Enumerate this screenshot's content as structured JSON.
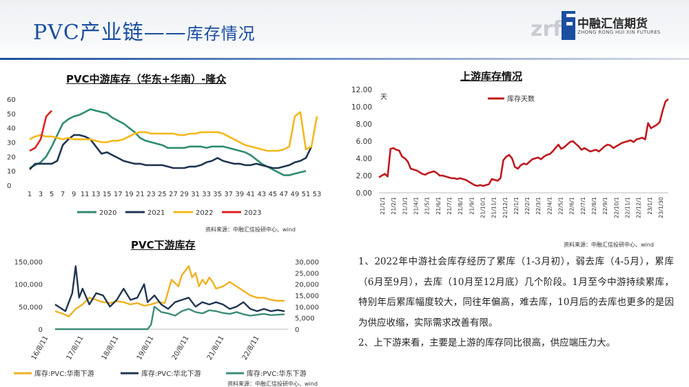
{
  "header": {
    "title": "PVC产业链——",
    "subtitle": "库存情况",
    "logo_name": "中融汇信期货",
    "logo_en": "ZHONG RONG HUI XIN FUTURES",
    "logo_mark": "zrf"
  },
  "charts": {
    "mid": {
      "title": "PVC中游库存（华东+华南）-隆众",
      "source": "资料来源：中融汇信投研中心、wind"
    },
    "up": {
      "title": "上游库存情况",
      "unit": "天",
      "source": "资料来源：中融汇信投研中心、wind"
    },
    "down": {
      "title": "PVC下游库存",
      "source": "资料来源：中融汇信投研中心、wind"
    }
  },
  "summary": {
    "p1": "1、2022年中游社会库存经历了累库（1-3月初），弱去库（4-5月），累库（6月至9月），去库（10月至12月底）几个阶段。1月至今中游持续累库，特别年后累库幅度较大，同往年偏高，难去库，10月后的去库也更多的是因为供应收缩，实际需求改善有限。",
    "p2": "2、上下游来看，主要是上游的库存同比很高，供应端压力大。"
  },
  "chart_data": [
    {
      "type": "line",
      "title": "PVC中游库存（华东+华南）-隆众",
      "x_ticks": [
        1,
        3,
        5,
        7,
        9,
        11,
        13,
        15,
        17,
        19,
        21,
        23,
        25,
        27,
        29,
        31,
        33,
        35,
        37,
        39,
        41,
        43,
        45,
        47,
        49,
        51,
        53
      ],
      "y_ticks": [
        0,
        10,
        20,
        30,
        40,
        50,
        60
      ],
      "ylim": [
        0,
        60
      ],
      "xlim": [
        1,
        53
      ],
      "grid": false,
      "legend_position": "bottom",
      "series": [
        {
          "name": "2020",
          "color": "#2e8b6e",
          "x": [
            1,
            2,
            3,
            4,
            5,
            6,
            7,
            8,
            9,
            10,
            11,
            12,
            13,
            14,
            15,
            16,
            17,
            18,
            19,
            20,
            21,
            22,
            23,
            24,
            25,
            26,
            27,
            28,
            29,
            30,
            31,
            32,
            33,
            34,
            35,
            36,
            37,
            38,
            39,
            40,
            41,
            42,
            43,
            44,
            45,
            46,
            47,
            48,
            49,
            50,
            51
          ],
          "y": [
            12,
            14,
            16,
            20,
            27,
            35,
            43,
            46,
            48,
            49,
            51,
            53,
            52,
            51,
            50,
            47,
            45,
            43,
            40,
            37,
            33,
            31,
            30,
            29,
            28,
            26,
            26,
            26,
            26,
            27,
            27,
            27,
            26,
            27,
            27,
            27,
            26,
            25,
            24,
            23,
            21,
            18,
            15,
            13,
            11,
            9,
            7,
            7,
            8,
            9,
            10
          ]
        },
        {
          "name": "2021",
          "color": "#1f3550",
          "x": [
            1,
            2,
            3,
            4,
            5,
            6,
            7,
            8,
            9,
            10,
            11,
            12,
            13,
            14,
            15,
            16,
            17,
            18,
            19,
            20,
            21,
            22,
            23,
            24,
            25,
            26,
            27,
            28,
            29,
            30,
            31,
            32,
            33,
            34,
            35,
            36,
            37,
            38,
            39,
            40,
            41,
            42,
            43,
            44,
            45,
            46,
            47,
            48,
            49,
            50,
            51,
            52
          ],
          "y": [
            11,
            15,
            15,
            15,
            15,
            17,
            28,
            32,
            35,
            35,
            34,
            32,
            27,
            22,
            23,
            21,
            19,
            17,
            16,
            15,
            15,
            14,
            14,
            14,
            14,
            13,
            12,
            12,
            12,
            13,
            13,
            14,
            16,
            17,
            19,
            17,
            16,
            15,
            15,
            14,
            14,
            15,
            14,
            13,
            12,
            12,
            13,
            14,
            16,
            17,
            19,
            27
          ]
        },
        {
          "name": "2022",
          "color": "#f5b81a",
          "x": [
            1,
            2,
            3,
            4,
            5,
            6,
            7,
            8,
            9,
            10,
            11,
            12,
            13,
            14,
            15,
            16,
            17,
            18,
            19,
            20,
            21,
            22,
            23,
            24,
            25,
            26,
            27,
            28,
            29,
            30,
            31,
            32,
            33,
            34,
            35,
            36,
            37,
            38,
            39,
            40,
            41,
            42,
            43,
            44,
            45,
            46,
            47,
            48,
            49,
            50,
            51,
            52,
            53
          ],
          "y": [
            32,
            34,
            35,
            34,
            34,
            33,
            32,
            33,
            32,
            32,
            32,
            32,
            31,
            30,
            30,
            31,
            31,
            32,
            34,
            36,
            37,
            37,
            36,
            36,
            36,
            36,
            36,
            35,
            35,
            36,
            36,
            37,
            37,
            37,
            37,
            36,
            34,
            32,
            30,
            28,
            27,
            26,
            25,
            24,
            24,
            24,
            25,
            27,
            48,
            51,
            25,
            27,
            48
          ]
        },
        {
          "name": "2023",
          "color": "#e02020",
          "x": [
            1,
            2,
            3,
            4,
            5
          ],
          "y": [
            24,
            26,
            32,
            48,
            52
          ]
        }
      ]
    },
    {
      "type": "line",
      "title": "上游库存情况",
      "ylabel": "天",
      "y_ticks": [
        0.0,
        2.0,
        4.0,
        6.0,
        8.0,
        10.0,
        12.0
      ],
      "ylim": [
        0,
        12
      ],
      "grid": false,
      "legend_position": "top-left",
      "categories": [
        "21/1/1",
        "21/2/1",
        "21/3/1",
        "21/4/1",
        "21/5/1",
        "21/6/1",
        "21/7/1",
        "21/8/1",
        "21/9/1",
        "21/10/1",
        "21/11/1",
        "21/12/1",
        "22/1/1",
        "22/2/1",
        "22/3/1",
        "22/4/1",
        "22/5/1",
        "22/6/1",
        "22/7/1",
        "22/8/1",
        "22/9/1",
        "22/10/1",
        "22/11/1",
        "22/12/1",
        "23/1/1",
        "23/1/30"
      ],
      "series": [
        {
          "name": "库存天数",
          "color": "#c0181e",
          "x": [
            0,
            1,
            2,
            3,
            4,
            5,
            6,
            7,
            8,
            9,
            10,
            11,
            12,
            13,
            14,
            15,
            16,
            17,
            18,
            19,
            20,
            21,
            22,
            23,
            24,
            25,
            26,
            27,
            28,
            29,
            30,
            31,
            32,
            33,
            34,
            35,
            36,
            37,
            38,
            39,
            40,
            41,
            42,
            43,
            44,
            45,
            46,
            47,
            48,
            49,
            50,
            51,
            52,
            53,
            54,
            55,
            56,
            57,
            58,
            59,
            60,
            61,
            62,
            63,
            64,
            65,
            66,
            67,
            68,
            69,
            70,
            71,
            72,
            73,
            74,
            75,
            76,
            77,
            78,
            79,
            80,
            81,
            82,
            83,
            84,
            85,
            86,
            87,
            88,
            89,
            90,
            91,
            92,
            93,
            94,
            95,
            96,
            97,
            98,
            99,
            100
          ],
          "y": [
            1.8,
            2.0,
            2.2,
            1.9,
            5.1,
            5.2,
            5.0,
            4.9,
            4.2,
            4.0,
            3.6,
            2.8,
            2.7,
            2.6,
            2.4,
            2.2,
            2.1,
            2.3,
            2.4,
            2.5,
            2.3,
            2.0,
            2.0,
            1.9,
            1.8,
            1.7,
            1.7,
            1.6,
            1.7,
            1.6,
            1.5,
            1.3,
            1.1,
            0.9,
            0.8,
            0.9,
            0.8,
            0.9,
            1.0,
            1.6,
            1.5,
            1.4,
            1.7,
            3.8,
            4.2,
            4.4,
            4.0,
            3.0,
            2.8,
            3.2,
            3.4,
            3.3,
            3.6,
            3.9,
            4.0,
            4.1,
            3.9,
            4.2,
            4.4,
            4.5,
            4.8,
            5.2,
            5.6,
            5.1,
            5.3,
            5.6,
            5.9,
            6.0,
            5.7,
            5.4,
            5.0,
            5.2,
            5.0,
            4.8,
            4.9,
            5.0,
            4.8,
            5.1,
            5.4,
            5.6,
            5.5,
            5.2,
            5.4,
            5.6,
            5.8,
            5.9,
            6.0,
            6.1,
            5.9,
            6.2,
            6.3,
            6.4,
            6.2,
            8.1,
            7.5,
            7.7,
            7.9,
            8.2,
            9.5,
            10.6,
            10.9
          ]
        }
      ]
    },
    {
      "type": "line",
      "title": "PVC下游库存",
      "y_ticks_left": [
        "0",
        "50,000",
        "100,000",
        "150,000"
      ],
      "y_ticks_right": [
        "0",
        "5,000",
        "10,000",
        "15,000",
        "20,000",
        "25,000",
        "30,000"
      ],
      "ylim_left": [
        0,
        150000
      ],
      "ylim_right": [
        0,
        30000
      ],
      "x_ticks": [
        "16/8/11",
        "17/8/11",
        "18/8/11",
        "19/8/11",
        "20/8/11",
        "21/8/11",
        "22/8/11"
      ],
      "xlim": [
        2016.3,
        2023.1
      ],
      "grid": false,
      "legend_position": "bottom",
      "series": [
        {
          "name": "库存:PVC:华南下游",
          "color": "#f0b020",
          "axis": "left",
          "x": [
            2016.3,
            2016.5,
            2016.7,
            2016.9,
            2017.1,
            2017.3,
            2017.5,
            2017.7,
            2017.9,
            2018.1,
            2018.3,
            2018.5,
            2018.7,
            2018.9,
            2019.1,
            2019.3,
            2019.5,
            2019.7,
            2019.9,
            2020.0,
            2020.1,
            2020.2,
            2020.3,
            2020.4,
            2020.5,
            2020.6,
            2020.7,
            2020.8,
            2020.9,
            2021.0,
            2021.2,
            2021.4,
            2021.6,
            2021.8,
            2022.0,
            2022.2,
            2022.4,
            2022.6,
            2022.8,
            2023.0
          ],
          "y": [
            40000,
            35000,
            28000,
            45000,
            55000,
            70000,
            65000,
            60000,
            58000,
            62000,
            60000,
            55000,
            58000,
            52000,
            55000,
            60000,
            58000,
            110000,
            95000,
            120000,
            130000,
            140000,
            115000,
            125000,
            95000,
            110000,
            100000,
            115000,
            105000,
            90000,
            95000,
            105000,
            95000,
            85000,
            75000,
            70000,
            70000,
            65000,
            63000,
            63000
          ]
        },
        {
          "name": "库存:PVC:华北下游",
          "color": "#1f3550",
          "axis": "right",
          "x": [
            2016.3,
            2016.5,
            2016.6,
            2016.8,
            2016.9,
            2017.0,
            2017.1,
            2017.3,
            2017.5,
            2017.7,
            2017.9,
            2018.1,
            2018.3,
            2018.5,
            2018.7,
            2018.9,
            2019.0,
            2019.2,
            2019.4,
            2019.6,
            2019.8,
            2020.0,
            2020.2,
            2020.4,
            2020.6,
            2020.8,
            2021.0,
            2021.2,
            2021.4,
            2021.6,
            2021.8,
            2022.0,
            2022.2,
            2022.4,
            2022.6,
            2022.8,
            2023.0
          ],
          "y": [
            11000,
            9000,
            8000,
            16000,
            28000,
            14000,
            18000,
            11000,
            16000,
            15000,
            10000,
            13000,
            18000,
            13000,
            14000,
            20000,
            12000,
            15000,
            11000,
            9000,
            12000,
            13000,
            14000,
            10000,
            12000,
            11000,
            12000,
            11000,
            9000,
            10000,
            12000,
            9000,
            8000,
            9000,
            8000,
            8500,
            8000
          ]
        },
        {
          "name": "库存:PVC:华东下游",
          "color": "#3c8c78",
          "axis": "left",
          "x": [
            2016.3,
            2016.8,
            2017.3,
            2017.8,
            2018.3,
            2018.8,
            2019.0,
            2019.1,
            2019.2,
            2019.4,
            2019.6,
            2019.8,
            2020.0,
            2020.2,
            2020.4,
            2020.6,
            2020.8,
            2021.0,
            2021.2,
            2021.4,
            2021.6,
            2021.8,
            2022.0,
            2022.2,
            2022.4,
            2022.6,
            2022.8,
            2023.0
          ],
          "y": [
            0,
            0,
            0,
            0,
            0,
            0,
            0,
            10000,
            50000,
            38000,
            35000,
            30000,
            40000,
            45000,
            38000,
            35000,
            42000,
            40000,
            36000,
            34000,
            38000,
            33000,
            30000,
            32000,
            34000,
            31000,
            32000,
            33000
          ]
        }
      ]
    }
  ]
}
